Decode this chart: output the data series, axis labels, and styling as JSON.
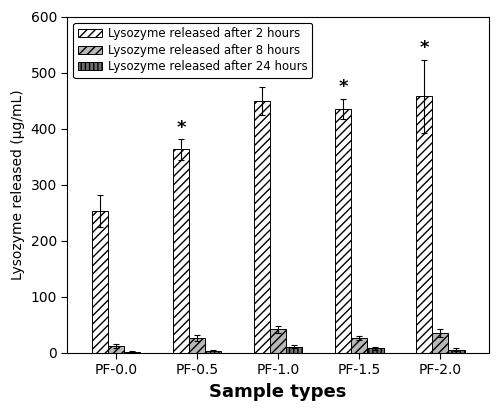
{
  "categories": [
    "PF-0.0",
    "PF-0.5",
    "PF-1.0",
    "PF-1.5",
    "PF-2.0"
  ],
  "values_2h": [
    253,
    363,
    450,
    435,
    458
  ],
  "values_8h": [
    12,
    27,
    42,
    27,
    35
  ],
  "values_24h": [
    2,
    4,
    11,
    8,
    6
  ],
  "errors_2h": [
    28,
    18,
    25,
    18,
    65
  ],
  "errors_8h": [
    4,
    5,
    6,
    4,
    7
  ],
  "errors_24h": [
    1,
    1,
    3,
    2,
    2
  ],
  "star_2h": [
    false,
    true,
    true,
    true,
    true
  ],
  "ylabel": "Lysozyme released (µg/mL)",
  "xlabel": "Sample types",
  "ylim": [
    0,
    600
  ],
  "yticks": [
    0,
    100,
    200,
    300,
    400,
    500,
    600
  ],
  "legend_labels": [
    "Lysozyme released after 2 hours",
    "Lysozyme released after 8 hours",
    "Lysozyme released after 24 hours"
  ],
  "color_2h": "#ffffff",
  "color_8h": "#b8b8b8",
  "color_24h": "#707070",
  "hatch_2h": "////",
  "hatch_8h": "////",
  "hatch_24h": "||||",
  "bar_width": 0.2,
  "edgecolor": "#000000",
  "star_fontsize": 13,
  "xlabel_fontsize": 13,
  "ylabel_fontsize": 10,
  "tick_fontsize": 10,
  "legend_fontsize": 8.5
}
